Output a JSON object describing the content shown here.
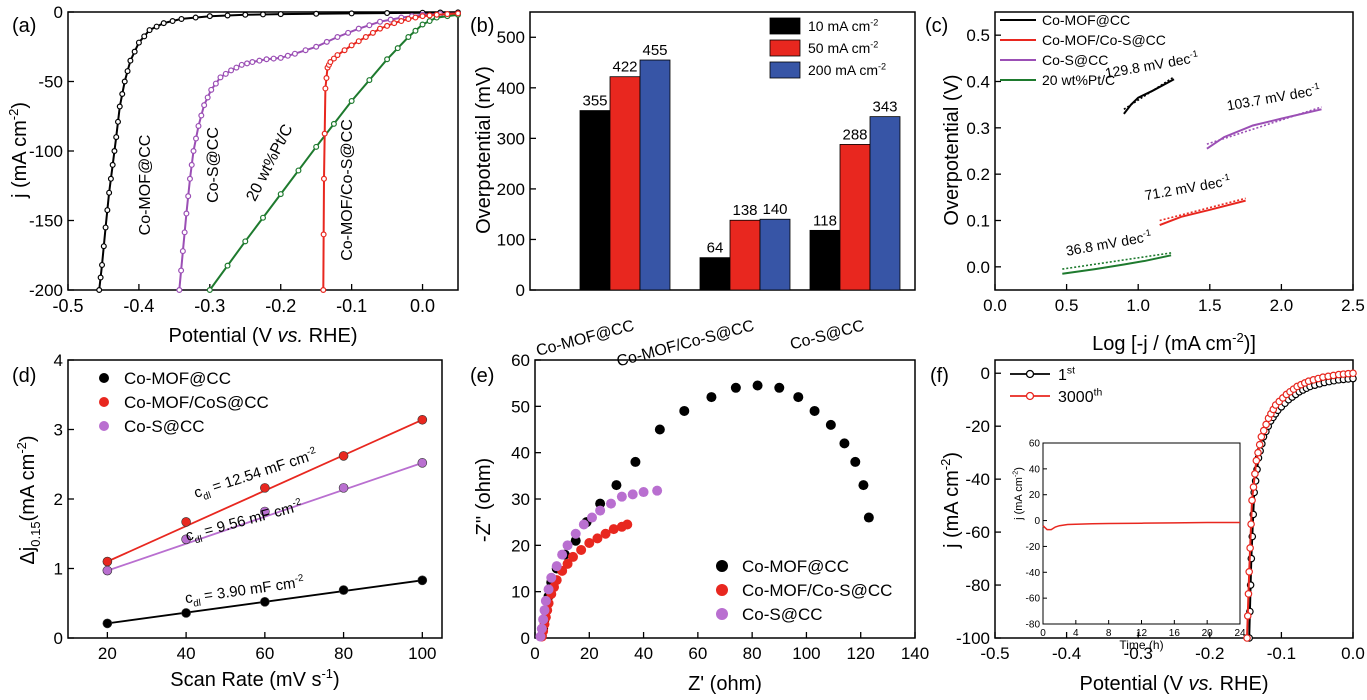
{
  "chart_data": [
    {
      "panel": "(a)",
      "type": "line",
      "xlabel": "Potential (V vs. RHE)",
      "ylabel": "j (mA cm-2)",
      "xlim": [
        -0.5,
        0.05
      ],
      "ylim": [
        -200,
        0
      ],
      "xticks": [
        "-0.5",
        "-0.4",
        "-0.3",
        "-0.2",
        "-0.1",
        "0.0"
      ],
      "yticks": [
        "0",
        "-50",
        "-100",
        "-150",
        "-200"
      ],
      "series": [
        {
          "name": "Co-MOF@CC",
          "color": "#000000",
          "x": [
            -0.456,
            -0.452,
            -0.447,
            -0.442,
            -0.437,
            -0.432,
            -0.427,
            -0.42,
            -0.412,
            -0.4,
            -0.385,
            -0.365,
            -0.34,
            -0.3,
            -0.25,
            -0.2,
            -0.1,
            0.0,
            0.05
          ],
          "y": [
            -200,
            -182,
            -155,
            -130,
            -110,
            -90,
            -68,
            -50,
            -35,
            -22,
            -13,
            -8,
            -5,
            -3,
            -2,
            -1.5,
            -1,
            -0.5,
            -0.3
          ]
        },
        {
          "name": "Co-S@CC",
          "color": "#9b4fb5",
          "x": [
            -0.343,
            -0.338,
            -0.333,
            -0.328,
            -0.323,
            -0.316,
            -0.308,
            -0.298,
            -0.285,
            -0.27,
            -0.255,
            -0.24,
            -0.22,
            -0.2,
            -0.18,
            -0.15,
            -0.12,
            -0.09,
            -0.06,
            -0.03,
            0.0,
            0.05
          ],
          "y": [
            -200,
            -172,
            -145,
            -120,
            -100,
            -82,
            -67,
            -56,
            -47,
            -42,
            -38,
            -36,
            -34,
            -33,
            -30,
            -25,
            -18,
            -12,
            -7,
            -4,
            -2,
            -1
          ]
        },
        {
          "name": "20 wt%Pt/C",
          "color": "#1e7a2e",
          "x": [
            -0.3,
            -0.25,
            -0.2,
            -0.15,
            -0.1,
            -0.05,
            -0.02,
            0.0,
            0.02,
            0.05
          ],
          "y": [
            -200,
            -165,
            -131,
            -97,
            -64,
            -34,
            -18,
            -9,
            -4,
            -2
          ]
        },
        {
          "name": "Co-MOF/Co-S@CC",
          "color": "#e8271f",
          "x": [
            -0.14,
            -0.139,
            -0.137,
            -0.134,
            -0.13,
            -0.12,
            -0.1,
            -0.08,
            -0.06,
            -0.04,
            -0.02,
            0.0,
            0.02,
            0.05
          ],
          "y": [
            -200,
            -120,
            -55,
            -40,
            -36,
            -31,
            -24,
            -18,
            -12,
            -8,
            -5,
            -3,
            -2,
            -1
          ]
        }
      ],
      "annotations": [
        "Co-MOF@CC",
        "Co-S@CC",
        "20 wt%Pt/C",
        "Co-MOF/Co-S@CC"
      ]
    },
    {
      "panel": "(b)",
      "type": "bar",
      "ylabel": "Overpotential (mV)",
      "ylim": [
        0,
        550
      ],
      "yticks": [
        "0",
        "100",
        "200",
        "300",
        "400",
        "500"
      ],
      "categories": [
        "Co-MOF@CC",
        "Co-MOF/Co-S@CC",
        "Co-S@CC"
      ],
      "series": [
        {
          "name": "10 mA cm-2",
          "color": "#000000",
          "values": [
            355,
            64,
            118
          ]
        },
        {
          "name": "50 mA cm-2",
          "color": "#e8271f",
          "values": [
            422,
            138,
            288
          ]
        },
        {
          "name": "200 mA cm-2",
          "color": "#3755a6",
          "values": [
            455,
            140,
            343
          ]
        }
      ],
      "legend": "top-right"
    },
    {
      "panel": "(c)",
      "type": "line",
      "xlabel": "Log [-j / (mA cm-2)]",
      "ylabel": "Overpotential (V)",
      "xlim": [
        0.0,
        2.5
      ],
      "ylim": [
        -0.05,
        0.55
      ],
      "xticks": [
        "0.0",
        "0.5",
        "1.0",
        "1.5",
        "2.0",
        "2.5"
      ],
      "yticks": [
        "0.0",
        "0.1",
        "0.2",
        "0.3",
        "0.4",
        "0.5"
      ],
      "series": [
        {
          "name": "Co-MOF@CC",
          "color": "#000000",
          "x": [
            0.9,
            0.95,
            1.0,
            1.1,
            1.25
          ],
          "y": [
            0.33,
            0.35,
            0.365,
            0.38,
            0.405
          ],
          "slope_label": "129.8 mV dec-1"
        },
        {
          "name": "Co-MOF/Co-S@CC",
          "color": "#e8271f",
          "x": [
            1.15,
            1.3,
            1.5,
            1.75
          ],
          "y": [
            0.09,
            0.108,
            0.123,
            0.143
          ],
          "slope_label": "71.2 mV dec-1"
        },
        {
          "name": "Co-S@CC",
          "color": "#9b4fb5",
          "x": [
            1.48,
            1.6,
            1.8,
            2.0,
            2.28
          ],
          "y": [
            0.255,
            0.28,
            0.305,
            0.32,
            0.34
          ],
          "slope_label": "103.7 mV dec-1"
        },
        {
          "name": "20 wt%Pt/C",
          "color": "#1e7a2e",
          "x": [
            0.47,
            0.7,
            0.9,
            1.05,
            1.23
          ],
          "y": [
            -0.015,
            -0.005,
            0.005,
            0.013,
            0.025
          ],
          "slope_label": "36.8 mV dec-1"
        }
      ],
      "legend": "top-left"
    },
    {
      "panel": "(d)",
      "type": "scatter",
      "xlabel": "Scan Rate (mV s-1)",
      "ylabel": "Δj0.15(mA cm-2)",
      "xlim": [
        10,
        105
      ],
      "ylim": [
        0,
        4
      ],
      "xticks": [
        "20",
        "40",
        "60",
        "80",
        "100"
      ],
      "yticks": [
        "0",
        "1",
        "2",
        "3",
        "4"
      ],
      "series": [
        {
          "name": "Co-MOF@CC",
          "color": "#000000",
          "x": [
            20,
            40,
            60,
            80,
            100
          ],
          "y": [
            0.21,
            0.36,
            0.52,
            0.69,
            0.83
          ],
          "fit_label": "cdl = 3.90 mF cm-2"
        },
        {
          "name": "Co-MOF/CoS@CC",
          "color": "#e8271f",
          "x": [
            20,
            40,
            60,
            80,
            100
          ],
          "y": [
            1.1,
            1.67,
            2.16,
            2.62,
            3.14
          ],
          "fit_label": "cdl = 12.54 mF cm-2"
        },
        {
          "name": "Co-S@CC",
          "color": "#b96fd0",
          "x": [
            20,
            40,
            60,
            80,
            100
          ],
          "y": [
            0.97,
            1.42,
            1.82,
            2.16,
            2.52
          ],
          "fit_label": "cdl = 9.56 mF cm-2"
        }
      ],
      "legend": "top-left"
    },
    {
      "panel": "(e)",
      "type": "scatter",
      "xlabel": "Z' (ohm)",
      "ylabel": "-Z'' (ohm)",
      "xlim": [
        0,
        140
      ],
      "ylim": [
        0,
        60
      ],
      "xticks": [
        "0",
        "20",
        "40",
        "60",
        "80",
        "100",
        "120",
        "140"
      ],
      "yticks": [
        "0",
        "10",
        "20",
        "30",
        "40",
        "50",
        "60"
      ],
      "series": [
        {
          "name": "Co-MOF@CC",
          "color": "#000000",
          "x": [
            2.5,
            3,
            3.5,
            4,
            5,
            6,
            8,
            11,
            15,
            19,
            24,
            30,
            37,
            46,
            55,
            65,
            74,
            82,
            90,
            97,
            103,
            109,
            114,
            118,
            121,
            123
          ],
          "y": [
            0.5,
            2,
            4,
            6,
            9,
            12,
            15,
            18,
            21,
            25,
            29,
            33,
            38,
            45,
            49,
            52,
            54,
            54.5,
            54,
            52,
            49,
            46,
            42,
            38,
            33,
            26
          ]
        },
        {
          "name": "Co-MOF/Co-S@CC",
          "color": "#e8271f",
          "x": [
            2.5,
            3,
            3.5,
            4,
            4.5,
            5,
            6,
            7,
            8,
            10,
            12,
            14,
            17,
            20,
            23,
            26,
            29,
            32,
            34
          ],
          "y": [
            0.3,
            1.5,
            3,
            4.5,
            6,
            7.5,
            9.5,
            11,
            12.5,
            14.5,
            16,
            17.5,
            19,
            20.5,
            21.5,
            22.5,
            23.5,
            24,
            24.5
          ],
          "partial": true
        },
        {
          "name": "Co-S@CC",
          "color": "#b96fd0",
          "x": [
            2,
            2.5,
            3,
            3.5,
            4,
            5,
            6,
            8,
            10,
            12,
            15,
            18,
            21,
            24,
            28,
            32,
            36,
            40,
            45
          ],
          "y": [
            0.3,
            2,
            4,
            6,
            8,
            10.5,
            13,
            15.5,
            18,
            20,
            22.5,
            24.5,
            26,
            27.5,
            29,
            30.5,
            31,
            31.5,
            31.8
          ],
          "partial": true
        }
      ],
      "legend": "bottom-right"
    },
    {
      "panel": "(f)",
      "type": "line",
      "xlabel": "Potential (V vs. RHE)",
      "ylabel": "j (mA cm-2)",
      "xlim": [
        -0.5,
        0.0
      ],
      "ylim": [
        -100,
        5
      ],
      "xticks": [
        "-0.5",
        "-0.4",
        "-0.3",
        "-0.2",
        "-0.1",
        "0.0"
      ],
      "yticks": [
        "0",
        "-20",
        "-40",
        "-60",
        "-80",
        "-100"
      ],
      "series": [
        {
          "name": "1st",
          "color": "#000000",
          "x": [
            -0.145,
            -0.142,
            -0.138,
            -0.132,
            -0.125,
            -0.115,
            -0.105,
            -0.09,
            -0.075,
            -0.06,
            -0.04,
            -0.02,
            0.0
          ],
          "y": [
            -100,
            -70,
            -45,
            -32,
            -24,
            -18,
            -14,
            -10,
            -7,
            -5,
            -3.5,
            -2.5,
            -2
          ]
        },
        {
          "name": "3000th",
          "color": "#e8271f",
          "x": [
            -0.148,
            -0.145,
            -0.141,
            -0.135,
            -0.128,
            -0.118,
            -0.108,
            -0.093,
            -0.078,
            -0.062,
            -0.042,
            -0.02,
            0.0
          ],
          "y": [
            -100,
            -75,
            -48,
            -33,
            -24,
            -17,
            -12,
            -8,
            -5,
            -3,
            -1.5,
            -0.5,
            0
          ]
        }
      ],
      "legend": "top-left",
      "inset": {
        "type": "line",
        "xlabel": "Time (h)",
        "ylabel": "j (mA cm-2)",
        "xlim": [
          0,
          24
        ],
        "ylim": [
          -80,
          60
        ],
        "xticks": [
          "0",
          "4",
          "8",
          "12",
          "16",
          "20",
          "24"
        ],
        "yticks": [
          "60",
          "40",
          "20",
          "0",
          "-20",
          "-40",
          "-60",
          "-80"
        ],
        "series": [
          {
            "name": "3000th",
            "color": "#e8271f",
            "x": [
              0,
              0.5,
              1,
              1.5,
              2,
              3,
              4,
              6,
              8,
              12,
              16,
              20,
              24
            ],
            "y": [
              -4,
              -7,
              -7,
              -5,
              -4,
              -3,
              -2.8,
              -2.5,
              -2.3,
              -2,
              -1.8,
              -1.5,
              -1.5
            ]
          }
        ]
      }
    }
  ]
}
